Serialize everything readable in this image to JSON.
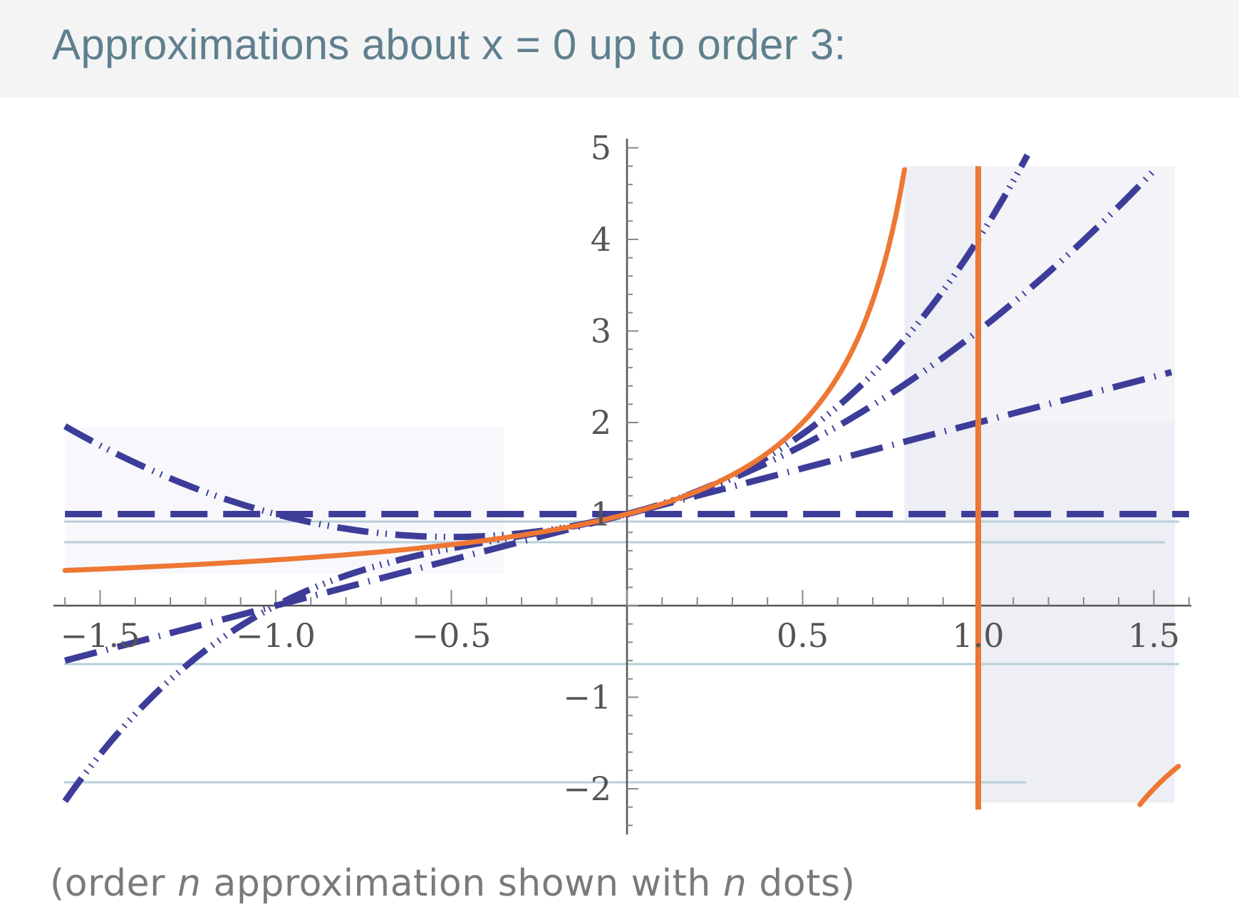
{
  "pod": {
    "title": "Approximations about x = 0 up to order 3:",
    "caption_before": "(order ",
    "caption_n1": "n",
    "caption_middle": " approximation shown with ",
    "caption_n2": "n",
    "caption_after": " dots)"
  },
  "colors": {
    "function": "#ee7733",
    "approximation": "#3d3d99",
    "axis": "#555555",
    "shade": "#eeeef5",
    "header_bg": "#f4f4f4",
    "title": "#5f7f8f",
    "guide_lines": "#b8cfd8"
  },
  "chart_data": {
    "type": "line",
    "function": "1/(1-x)",
    "expansion_point": 0,
    "max_order": 3,
    "xlim": [
      -1.65,
      1.65
    ],
    "ylim": [
      -2.5,
      5.1
    ],
    "xticks": [
      -1.5,
      -1.0,
      -0.5,
      0.5,
      1.0,
      1.5
    ],
    "xtick_labels": [
      "−1.5",
      "−1.0",
      "−0.5",
      "0.5",
      "1.0",
      "1.5"
    ],
    "yticks": [
      -2,
      -1,
      1,
      2,
      3,
      4,
      5
    ],
    "ytick_labels": [
      "−2",
      "−1",
      "1",
      "2",
      "3",
      "4",
      "5"
    ],
    "vertical_asymptote": 1.0,
    "series": [
      {
        "function": "1/(1-x)",
        "order": null,
        "x": [
          -1.6,
          -1.0,
          -0.5,
          0,
          0.5,
          0.8
        ],
        "y": [
          0.385,
          0.5,
          0.667,
          1,
          2,
          5
        ]
      },
      {
        "order": 0,
        "x": [
          -1.6,
          1.6
        ],
        "y": [
          1,
          1
        ]
      },
      {
        "order": 1,
        "x": [
          -1.6,
          1.6
        ],
        "y": [
          -0.6,
          2.6
        ]
      },
      {
        "order": 2,
        "x": [
          -1.6,
          -1.0,
          -0.5,
          0,
          0.5,
          1.0,
          1.5
        ],
        "y": [
          1.96,
          1.0,
          0.75,
          1.0,
          1.75,
          3.0,
          4.75
        ]
      },
      {
        "order": 3,
        "x": [
          -1.6,
          -1.0,
          -0.5,
          0,
          0.5,
          1.0,
          1.14
        ],
        "y": [
          -2.14,
          0.0,
          0.625,
          1.0,
          1.875,
          4.0,
          4.9
        ]
      }
    ]
  }
}
